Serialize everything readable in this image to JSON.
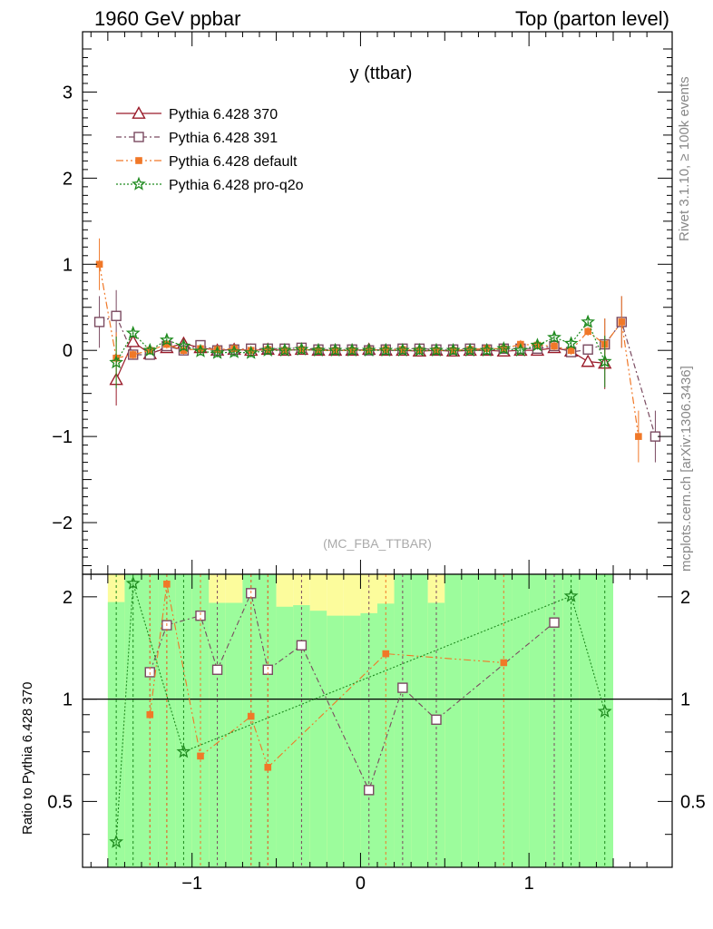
{
  "header": {
    "left": "1960 GeV ppbar",
    "right": "Top (parton level)"
  },
  "side_labels": {
    "rivet": "Rivet 3.1.10, ≥ 100k events",
    "mcplots": "mcplots.cern.ch [arXiv:1306.3436]"
  },
  "colors": {
    "p370": "#9a1b2a",
    "p391": "#7a4a60",
    "pdefault": "#f07828",
    "pq2o": "#1e8a1e",
    "band_inner": "#9cfc9c",
    "band_outer": "#fcfc9c"
  },
  "chart_data": [
    {
      "type": "line",
      "title": "y (ttbar)",
      "annotation": "(MC_FBA_TTBAR)",
      "xlim": [
        -1.65,
        1.85
      ],
      "ylim": [
        -2.6,
        3.7
      ],
      "yticks": [
        -2,
        -1,
        0,
        1,
        2,
        3
      ],
      "xticks": [
        -1,
        0,
        1
      ],
      "legend_position": "top-left",
      "series": [
        {
          "name": "Pythia 6.428 370",
          "marker": "triangle-open",
          "line": "solid",
          "x": [
            -1.45,
            -1.35,
            -1.25,
            -1.15,
            -1.05,
            -0.95,
            -0.85,
            -0.75,
            -0.65,
            -0.55,
            -0.45,
            -0.35,
            -0.25,
            -0.15,
            -0.05,
            0.05,
            0.15,
            0.25,
            0.35,
            0.45,
            0.55,
            0.65,
            0.75,
            0.85,
            0.95,
            1.05,
            1.15,
            1.25,
            1.35,
            1.45
          ],
          "y": [
            -0.34,
            0.1,
            -0.04,
            0.03,
            0.08,
            0.03,
            0.0,
            0.01,
            0.0,
            0.01,
            0.0,
            0.01,
            0.0,
            0.0,
            0.0,
            0.01,
            0.0,
            0.0,
            -0.01,
            0.0,
            -0.01,
            0.0,
            0.0,
            -0.01,
            0.0,
            0.0,
            0.03,
            -0.01,
            -0.13,
            -0.15
          ]
        },
        {
          "name": "Pythia 6.428 391",
          "marker": "square-open",
          "line": "dash-dot",
          "x": [
            -1.55,
            -1.45,
            -1.35,
            -1.25,
            -1.15,
            -1.05,
            -0.95,
            -0.85,
            -0.75,
            -0.65,
            -0.55,
            -0.45,
            -0.35,
            -0.25,
            -0.15,
            -0.05,
            0.05,
            0.15,
            0.25,
            0.35,
            0.45,
            0.55,
            0.65,
            0.75,
            0.85,
            0.95,
            1.05,
            1.15,
            1.25,
            1.35,
            1.45,
            1.55,
            1.75
          ],
          "y": [
            0.33,
            0.4,
            -0.05,
            -0.05,
            0.05,
            0.0,
            0.06,
            0.0,
            0.01,
            0.02,
            0.02,
            0.02,
            0.03,
            0.01,
            0.01,
            0.01,
            0.0,
            0.01,
            0.02,
            0.02,
            0.01,
            0.01,
            0.02,
            0.01,
            0.02,
            0.02,
            0.02,
            0.05,
            -0.02,
            0.01,
            0.07,
            0.33,
            -1.0
          ]
        },
        {
          "name": "Pythia 6.428 default",
          "marker": "square-filled",
          "line": "dash-dot-dot",
          "x": [
            -1.55,
            -1.45,
            -1.35,
            -1.25,
            -1.15,
            -1.05,
            -0.95,
            -0.85,
            -0.75,
            -0.65,
            -0.55,
            -0.45,
            -0.35,
            -0.25,
            -0.15,
            -0.05,
            0.05,
            0.15,
            0.25,
            0.35,
            0.45,
            0.55,
            0.65,
            0.75,
            0.85,
            0.95,
            1.05,
            1.15,
            1.25,
            1.35,
            1.45,
            1.55,
            1.65
          ],
          "y": [
            1.0,
            -0.09,
            -0.05,
            0.0,
            0.07,
            0.0,
            0.02,
            0.01,
            0.02,
            0.0,
            0.01,
            0.0,
            0.01,
            0.0,
            0.0,
            0.0,
            0.0,
            0.01,
            0.01,
            0.0,
            0.0,
            0.0,
            0.01,
            0.02,
            0.02,
            0.07,
            0.06,
            0.05,
            0.0,
            0.22,
            0.07,
            0.33,
            -1.0
          ]
        },
        {
          "name": "Pythia 6.428 pro-q2o",
          "marker": "star",
          "line": "dotted",
          "x": [
            -1.45,
            -1.35,
            -1.25,
            -1.15,
            -1.05,
            -0.95,
            -0.85,
            -0.75,
            -0.65,
            -0.55,
            -0.45,
            -0.35,
            -0.25,
            -0.15,
            -0.05,
            0.05,
            0.15,
            0.25,
            0.35,
            0.45,
            0.55,
            0.65,
            0.75,
            0.85,
            0.95,
            1.05,
            1.15,
            1.25,
            1.35,
            1.45
          ],
          "y": [
            -0.14,
            0.2,
            0.0,
            0.12,
            0.05,
            -0.01,
            -0.03,
            -0.02,
            -0.03,
            0.0,
            0.0,
            0.01,
            0.0,
            0.0,
            0.0,
            0.0,
            0.0,
            0.0,
            0.0,
            0.0,
            0.0,
            0.0,
            0.0,
            0.02,
            0.0,
            0.06,
            0.15,
            0.08,
            0.33,
            -0.13
          ]
        }
      ]
    },
    {
      "type": "line",
      "ylabel": "Ratio to Pythia 6.428 370",
      "xlim": [
        -1.65,
        1.85
      ],
      "ylim": [
        0.32,
        2.33
      ],
      "ytick_labels": [
        "0.5",
        "1",
        "2"
      ],
      "ytick_values": [
        0.5,
        1,
        2
      ],
      "xtick_labels": [
        "−1",
        "0",
        "1"
      ],
      "xtick_values": [
        -1,
        0,
        1
      ],
      "reference_line": 1,
      "band": {
        "x_edges": [
          -1.5,
          -1.4,
          -1.3,
          -1.2,
          -1.1,
          -1.0,
          -0.9,
          -0.8,
          -0.7,
          -0.6,
          -0.5,
          -0.4,
          -0.3,
          -0.2,
          -0.1,
          0.0,
          0.1,
          0.2,
          0.3,
          0.4,
          0.5,
          0.6,
          0.7,
          0.8,
          0.9,
          1.0,
          1.1,
          1.2,
          1.3,
          1.4,
          1.5
        ],
        "inner_low": [
          0.32,
          0.32,
          0.32,
          0.32,
          0.32,
          0.32,
          0.32,
          0.32,
          0.32,
          0.32,
          0.32,
          0.32,
          0.32,
          0.32,
          0.32,
          0.32,
          0.32,
          0.32,
          0.32,
          0.32,
          0.32,
          0.32,
          0.32,
          0.32,
          0.32,
          0.32,
          0.32,
          0.32,
          0.32,
          0.32
        ],
        "inner_high": [
          1.93,
          2.33,
          2.33,
          2.33,
          2.33,
          2.33,
          1.92,
          1.92,
          2.33,
          2.33,
          1.87,
          1.89,
          1.82,
          1.76,
          1.76,
          1.79,
          1.91,
          2.33,
          2.33,
          1.92,
          2.33,
          2.33,
          2.33,
          2.33,
          2.33,
          2.33,
          2.33,
          2.33,
          2.33,
          2.33
        ],
        "outer_low": [
          0.32,
          0.32,
          0.32,
          0.32,
          0.32,
          0.32,
          0.32,
          0.32,
          0.32,
          0.32,
          0.32,
          0.32,
          0.32,
          0.32,
          0.32,
          0.32,
          0.32,
          0.32,
          0.32,
          0.32,
          0.32,
          0.32,
          0.32,
          0.32,
          0.32,
          0.32,
          0.32,
          0.32,
          0.32,
          0.32
        ],
        "outer_high": [
          2.33,
          2.33,
          2.33,
          2.33,
          2.33,
          2.33,
          2.33,
          2.33,
          2.33,
          2.33,
          2.33,
          2.33,
          2.33,
          2.33,
          2.33,
          2.33,
          2.33,
          2.33,
          2.33,
          2.33,
          2.33,
          2.33,
          2.33,
          2.33,
          2.33,
          2.33,
          2.33,
          2.33,
          2.33,
          2.33
        ]
      },
      "series": [
        {
          "name": "Pythia 6.428 391",
          "x": [
            -1.25,
            -1.15,
            -0.95,
            -0.85,
            -0.65,
            -0.55,
            -0.35,
            0.05,
            0.25,
            0.45,
            1.15
          ],
          "y": [
            1.2,
            1.65,
            1.76,
            1.22,
            2.05,
            1.22,
            1.44,
            0.54,
            1.08,
            0.87,
            1.68
          ]
        },
        {
          "name": "Pythia 6.428 default",
          "x": [
            -1.25,
            -1.15,
            -0.95,
            -0.65,
            -0.55,
            0.15,
            0.85
          ],
          "y": [
            0.9,
            2.18,
            0.68,
            0.89,
            0.63,
            1.36,
            1.28
          ]
        },
        {
          "name": "Pythia 6.428 pro-q2o",
          "x": [
            -1.45,
            -1.35,
            -1.05,
            1.25,
            1.45
          ],
          "y": [
            0.38,
            2.19,
            0.7,
            2.01,
            0.92
          ]
        }
      ]
    }
  ]
}
